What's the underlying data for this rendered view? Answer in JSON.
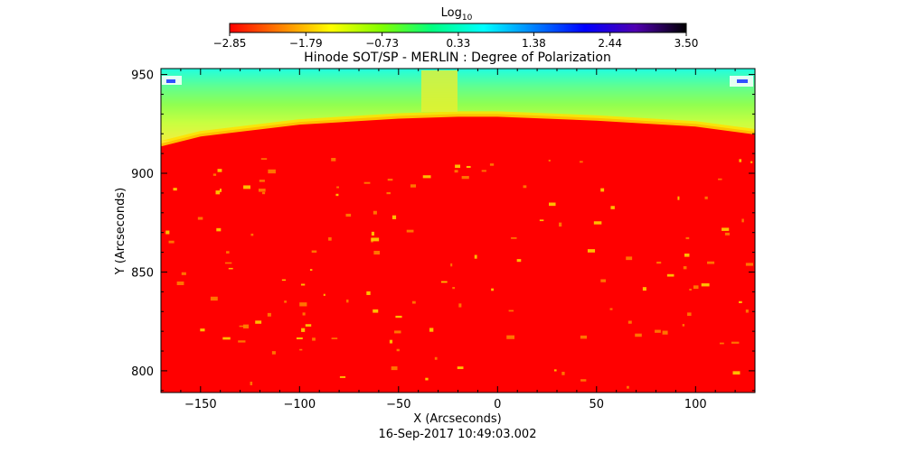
{
  "chart_data": {
    "type": "heatmap",
    "title": "Hinode SOT/SP - MERLIN : Degree of Polarization",
    "xlabel": "X (Arcseconds)",
    "ylabel": "Y (Arcseconds)",
    "footer": "16-Sep-2017 10:49:03.002",
    "xlim": [
      -170,
      130
    ],
    "ylim": [
      789,
      953
    ],
    "x_ticks": [
      -150,
      -100,
      -50,
      0,
      50,
      100
    ],
    "x_tick_labels": [
      "−150",
      "−100",
      "−50",
      "0",
      "50",
      "100"
    ],
    "y_ticks": [
      800,
      850,
      900,
      950
    ],
    "y_tick_labels": [
      "800",
      "850",
      "900",
      "950"
    ],
    "colorbar": {
      "label_base": "Log",
      "label_sub": "10",
      "range": [
        -2.85,
        3.5
      ],
      "ticks": [
        -2.85,
        -1.79,
        -0.73,
        0.33,
        1.38,
        2.44,
        3.5
      ],
      "tick_labels": [
        "−2.85",
        "−1.79",
        "−0.73",
        "0.33",
        "1.38",
        "2.44",
        "3.50"
      ],
      "colormap": [
        "#ff0000",
        "#ff8000",
        "#ffff00",
        "#80ff00",
        "#00ff80",
        "#00ffff",
        "#0080ff",
        "#0000ff",
        "#5000b0",
        "#000000"
      ]
    },
    "limb": {
      "y_at_x": [
        [
          -170,
          915
        ],
        [
          -150,
          920
        ],
        [
          -100,
          926
        ],
        [
          -50,
          929
        ],
        [
          -20,
          930
        ],
        [
          0,
          930
        ],
        [
          50,
          928
        ],
        [
          100,
          925
        ],
        [
          130,
          921
        ]
      ],
      "off_disk_gradient": [
        "#f0f040",
        "#c8ff40",
        "#90ff50",
        "#60ff90",
        "#20ffe0"
      ],
      "on_disk_color": "#ff0000"
    }
  }
}
